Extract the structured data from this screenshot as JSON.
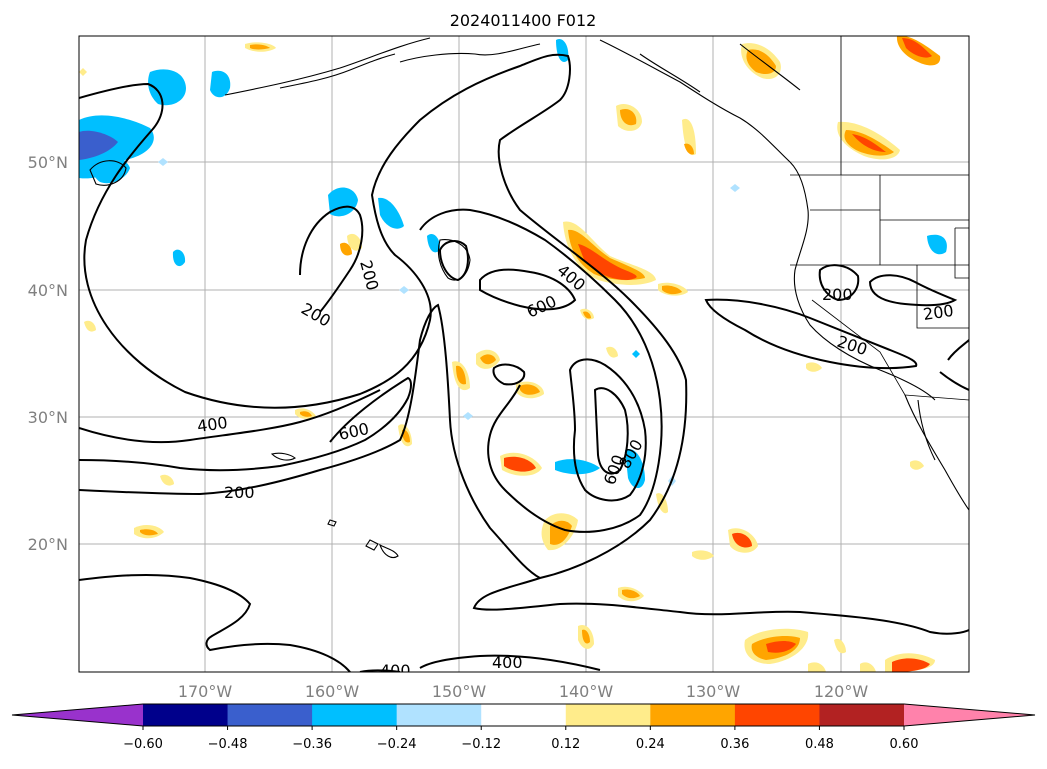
{
  "title": "2024011400 F012",
  "map": {
    "lat_ticks": [
      "50°N",
      "40°N",
      "30°N",
      "20°N"
    ],
    "lon_ticks": [
      "170°W",
      "160°W",
      "150°W",
      "140°W",
      "130°W",
      "120°W"
    ],
    "contour_labels": [
      "200",
      "200",
      "400",
      "600",
      "400",
      "600",
      "200",
      "600",
      "800",
      "400",
      "400",
      "200",
      "200",
      "200"
    ]
  },
  "colorbar": {
    "colors": [
      "#9932cc",
      "#00008b",
      "#3a5fcd",
      "#00bfff",
      "#b0e2ff",
      "#ffffff",
      "#ffec8b",
      "#ffa500",
      "#ff4500",
      "#b22222",
      "#ff82ab"
    ],
    "ticks": [
      "−0.60",
      "−0.48",
      "−0.36",
      "−0.24",
      "−0.12",
      "0.12",
      "0.24",
      "0.36",
      "0.48",
      "0.60"
    ]
  }
}
